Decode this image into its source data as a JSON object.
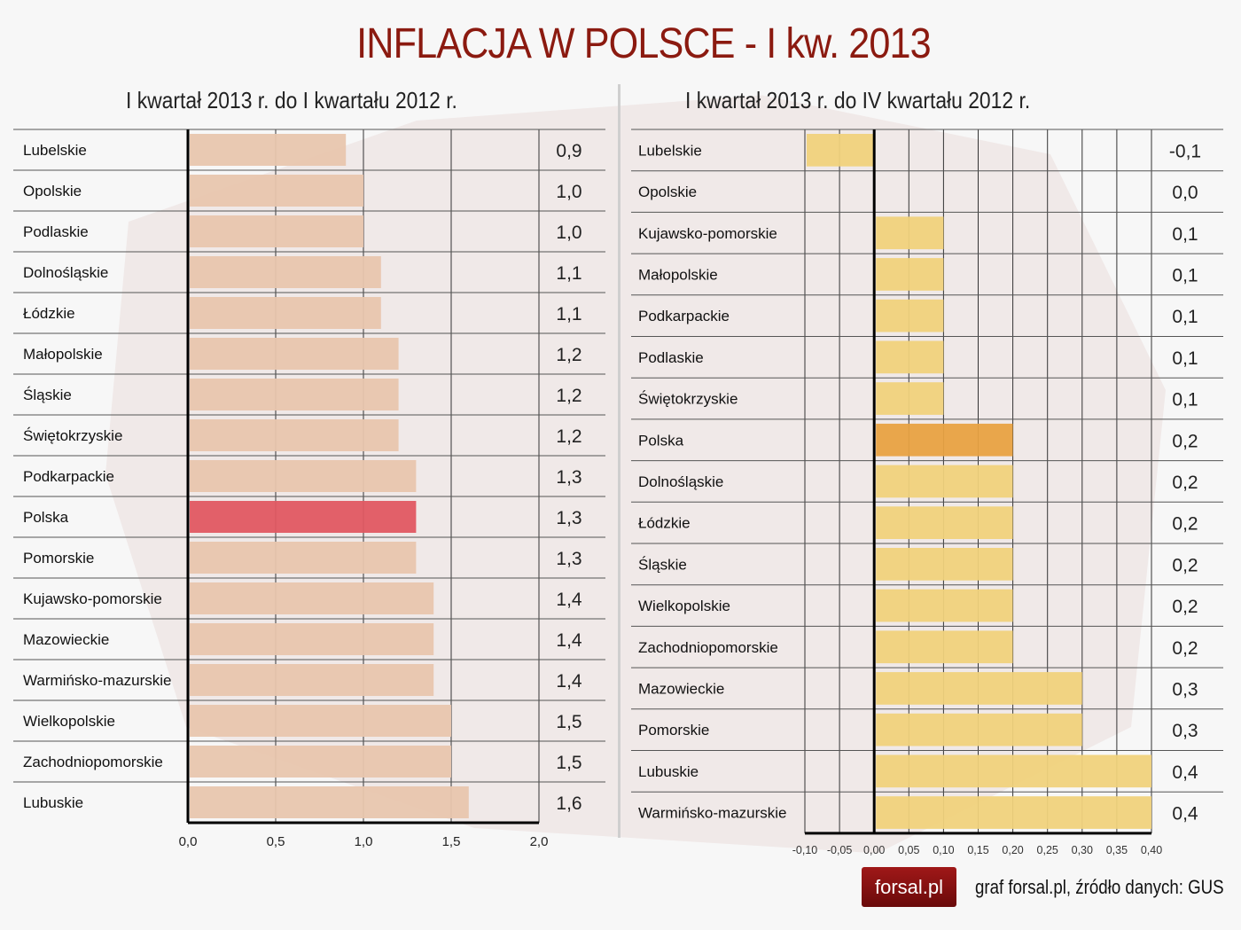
{
  "title": "INFLACJA W POLSCE - I kw. 2013",
  "footer": {
    "logo_text": "forsal.pl",
    "credit": "graf forsal.pl, źródło danych: GUS"
  },
  "colors": {
    "left_bar": "#e8c6ae",
    "left_highlight": "#e05862",
    "right_bar": "#f0d27c",
    "right_highlight": "#e8a242",
    "title": "#8b1a10"
  },
  "chart_data": [
    {
      "type": "bar",
      "orientation": "horizontal",
      "title": "I kwartał 2013 r. do I kwartału 2012 r.",
      "categories": [
        "Lubelskie",
        "Opolskie",
        "Podlaskie",
        "Dolnośląskie",
        "Łódzkie",
        "Małopolskie",
        "Śląskie",
        "Świętokrzyskie",
        "Podkarpackie",
        "Polska",
        "Pomorskie",
        "Kujawsko-pomorskie",
        "Mazowieckie",
        "Warmińsko-mazurskie",
        "Wielkopolskie",
        "Zachodniopomorskie",
        "Lubuskie"
      ],
      "values": [
        0.9,
        1.0,
        1.0,
        1.1,
        1.1,
        1.2,
        1.2,
        1.2,
        1.3,
        1.3,
        1.3,
        1.4,
        1.4,
        1.4,
        1.5,
        1.5,
        1.6
      ],
      "value_labels": [
        "0,9",
        "1,0",
        "1,0",
        "1,1",
        "1,1",
        "1,2",
        "1,2",
        "1,2",
        "1,3",
        "1,3",
        "1,3",
        "1,4",
        "1,4",
        "1,4",
        "1,5",
        "1,5",
        "1,6"
      ],
      "highlight": "Polska",
      "xlim": [
        0,
        2.0
      ],
      "ticks": [
        "0,0",
        "0,5",
        "1,0",
        "1,5",
        "2,0"
      ],
      "grid": true
    },
    {
      "type": "bar",
      "orientation": "horizontal",
      "title": "I kwartał 2013 r. do IV kwartału 2012 r.",
      "categories": [
        "Lubelskie",
        "Opolskie",
        "Kujawsko-pomorskie",
        "Małopolskie",
        "Podkarpackie",
        "Podlaskie",
        "Świętokrzyskie",
        "Polska",
        "Dolnośląskie",
        "Łódzkie",
        "Śląskie",
        "Wielkopolskie",
        "Zachodniopomorskie",
        "Mazowieckie",
        "Pomorskie",
        "Lubuskie",
        "Warmińsko-mazurskie"
      ],
      "values": [
        -0.1,
        0.0,
        0.1,
        0.1,
        0.1,
        0.1,
        0.1,
        0.2,
        0.2,
        0.2,
        0.2,
        0.2,
        0.2,
        0.3,
        0.3,
        0.4,
        0.4
      ],
      "value_labels": [
        "-0,1",
        "0,0",
        "0,1",
        "0,1",
        "0,1",
        "0,1",
        "0,1",
        "0,2",
        "0,2",
        "0,2",
        "0,2",
        "0,2",
        "0,2",
        "0,3",
        "0,3",
        "0,4",
        "0,4"
      ],
      "highlight": "Polska",
      "xlim": [
        -0.1,
        0.4
      ],
      "ticks": [
        "-0,10",
        "-0,05",
        "0,00",
        "0,05",
        "0,10",
        "0,15",
        "0,20",
        "0,25",
        "0,30",
        "0,35",
        "0,40"
      ],
      "grid": true
    }
  ]
}
